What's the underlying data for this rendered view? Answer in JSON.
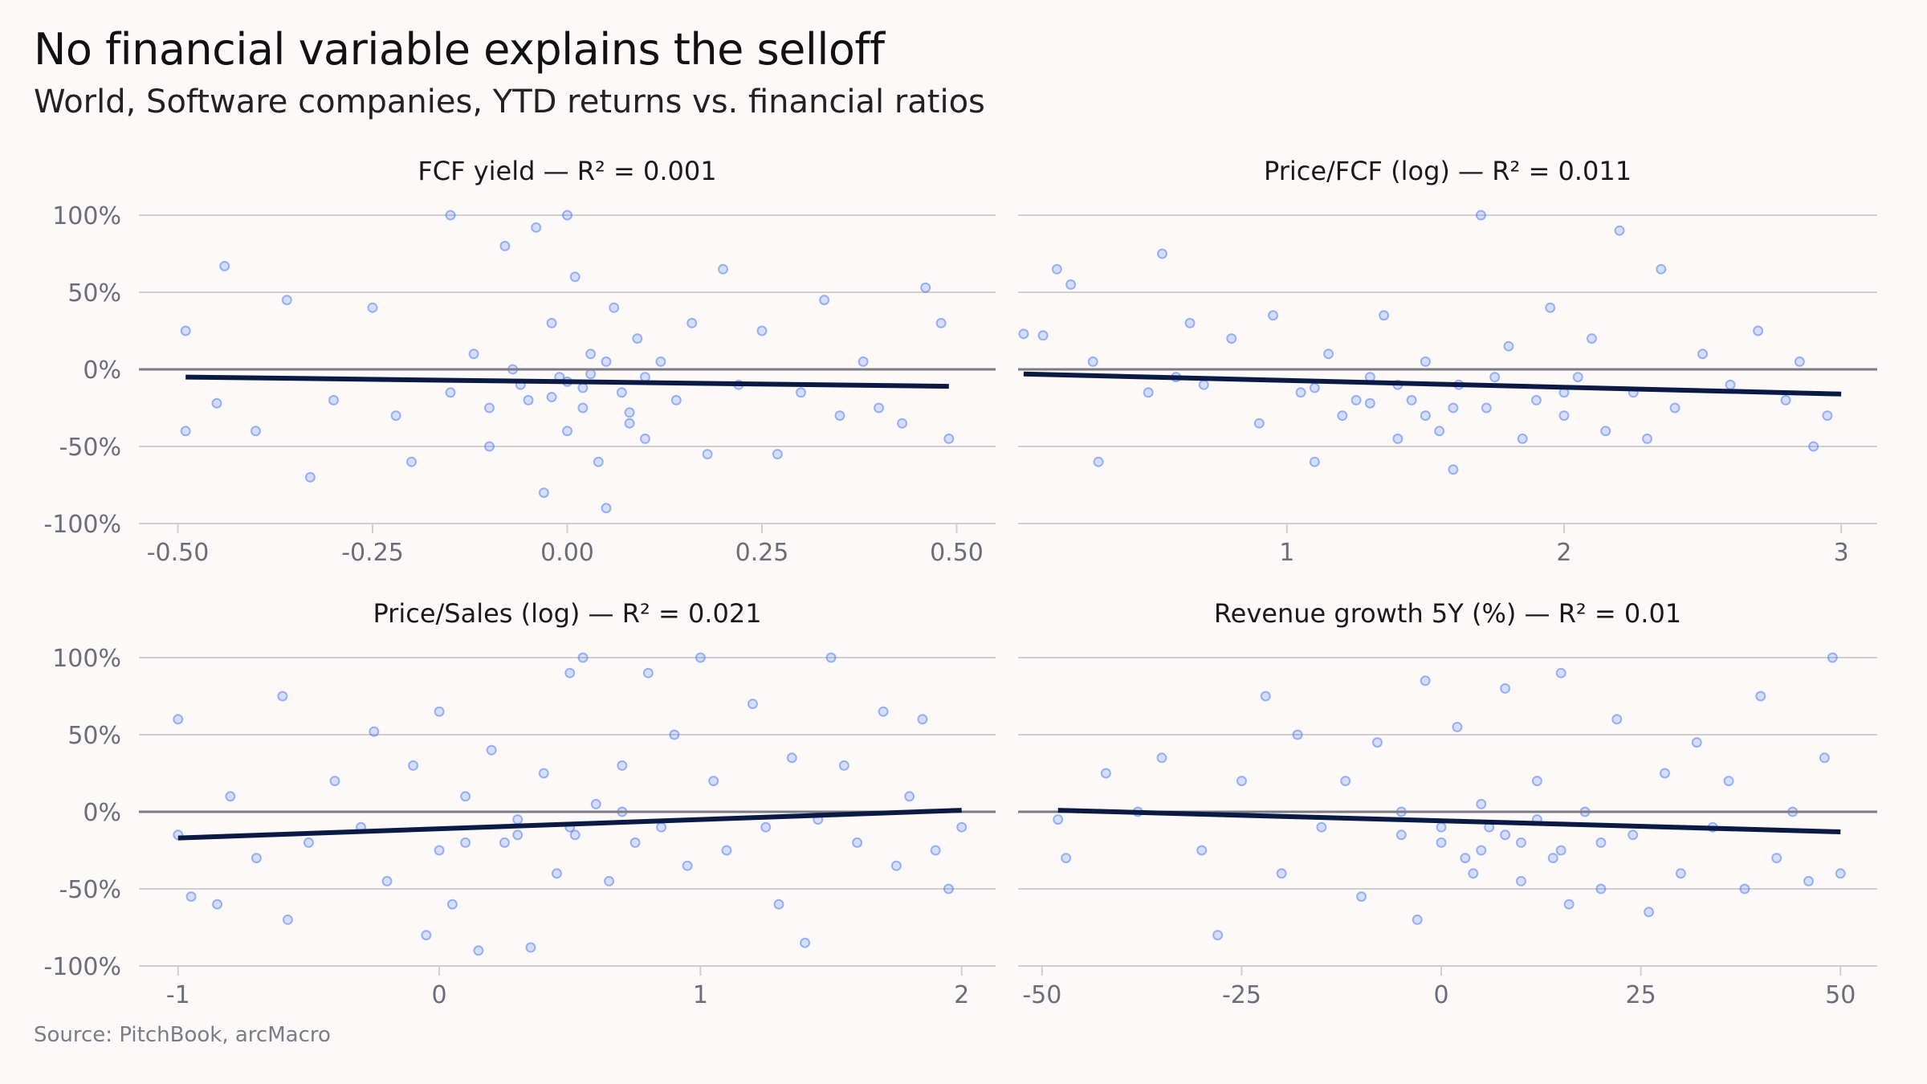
{
  "header": {
    "title": "No financial variable explains the selloff",
    "subtitle": "World, Software companies, YTD returns vs. financial ratios"
  },
  "footer": {
    "source": "Source: PitchBook, arcMacro"
  },
  "colors": {
    "points": "#2f66ff",
    "trend": "#0a1a45",
    "zero_line": "#7b7c84",
    "grid": "#cfcfcf",
    "background": "#fcf9f8"
  },
  "chart_data": [
    {
      "type": "scatter",
      "title": "FCF yield — R² = 0.001",
      "xlim": [
        -0.55,
        0.55
      ],
      "ylim": [
        -100,
        100
      ],
      "xticks": [
        -0.5,
        -0.25,
        0,
        0.25,
        0.5
      ],
      "xtick_labels": [
        "-0.50",
        "-0.25",
        "0.00",
        "0.25",
        "0.50"
      ],
      "yticks": [
        100,
        50,
        0,
        -50,
        -100
      ],
      "ytick_labels": [
        "100%",
        "50%",
        "0%",
        "-50%",
        "-100%"
      ],
      "trend": [
        [
          -0.49,
          -5
        ],
        [
          0.49,
          -11
        ]
      ],
      "points": [
        [
          -0.49,
          25
        ],
        [
          -0.49,
          -40
        ],
        [
          -0.44,
          67
        ],
        [
          -0.45,
          -22
        ],
        [
          -0.4,
          -40
        ],
        [
          -0.36,
          45
        ],
        [
          -0.33,
          -70
        ],
        [
          -0.3,
          -20
        ],
        [
          -0.25,
          40
        ],
        [
          -0.22,
          -30
        ],
        [
          -0.2,
          -60
        ],
        [
          -0.15,
          100
        ],
        [
          -0.15,
          -15
        ],
        [
          -0.12,
          10
        ],
        [
          -0.1,
          -50
        ],
        [
          -0.08,
          80
        ],
        [
          -0.05,
          -20
        ],
        [
          -0.04,
          92
        ],
        [
          -0.03,
          -80
        ],
        [
          -0.02,
          30
        ],
        [
          -0.01,
          -5
        ],
        [
          0,
          100
        ],
        [
          0,
          -40
        ],
        [
          0.01,
          60
        ],
        [
          0.02,
          -25
        ],
        [
          0.03,
          10
        ],
        [
          0.04,
          -60
        ],
        [
          0.05,
          -90
        ],
        [
          0.06,
          40
        ],
        [
          0.07,
          -15
        ],
        [
          0.08,
          -35
        ],
        [
          0.09,
          20
        ],
        [
          0.1,
          -45
        ],
        [
          0.12,
          5
        ],
        [
          0.14,
          -20
        ],
        [
          0.16,
          30
        ],
        [
          0.18,
          -55
        ],
        [
          0.2,
          65
        ],
        [
          0.22,
          -10
        ],
        [
          0.25,
          25
        ],
        [
          0.27,
          -55
        ],
        [
          0.3,
          -15
        ],
        [
          0.33,
          45
        ],
        [
          0.35,
          -30
        ],
        [
          0.38,
          5
        ],
        [
          0.4,
          -25
        ],
        [
          0.43,
          -35
        ],
        [
          0.46,
          53
        ],
        [
          0.48,
          30
        ],
        [
          0.49,
          -45
        ],
        [
          -0.06,
          -10
        ],
        [
          0,
          -8
        ],
        [
          0.02,
          -12
        ],
        [
          -0.02,
          -18
        ],
        [
          0.05,
          5
        ],
        [
          -0.07,
          0
        ],
        [
          0.1,
          -5
        ],
        [
          -0.1,
          -25
        ],
        [
          0.08,
          -28
        ],
        [
          0.03,
          -3
        ]
      ]
    },
    {
      "type": "scatter",
      "title": "Price/FCF (log) — R² = 0.011",
      "xlim": [
        0.03,
        3.13
      ],
      "ylim": [
        -100,
        100
      ],
      "xticks": [
        1,
        2,
        3
      ],
      "xtick_labels": [
        "1",
        "2",
        "3"
      ],
      "yticks": [
        100,
        50,
        0,
        -50,
        -100
      ],
      "ytick_labels": [],
      "trend": [
        [
          0.05,
          -3
        ],
        [
          3,
          -16
        ]
      ],
      "points": [
        [
          0.05,
          23
        ],
        [
          0.12,
          22
        ],
        [
          0.17,
          65
        ],
        [
          0.22,
          55
        ],
        [
          0.3,
          5
        ],
        [
          0.32,
          -60
        ],
        [
          0.5,
          -15
        ],
        [
          0.55,
          75
        ],
        [
          0.65,
          30
        ],
        [
          0.8,
          20
        ],
        [
          0.9,
          -35
        ],
        [
          0.95,
          35
        ],
        [
          1.05,
          -15
        ],
        [
          1.1,
          -60
        ],
        [
          1.15,
          10
        ],
        [
          1.2,
          -30
        ],
        [
          1.3,
          -5
        ],
        [
          1.35,
          35
        ],
        [
          1.4,
          -45
        ],
        [
          1.45,
          -20
        ],
        [
          1.5,
          5
        ],
        [
          1.55,
          -40
        ],
        [
          1.6,
          -65
        ],
        [
          1.62,
          -10
        ],
        [
          1.7,
          100
        ],
        [
          1.72,
          -25
        ],
        [
          1.8,
          15
        ],
        [
          1.85,
          -45
        ],
        [
          1.9,
          -20
        ],
        [
          1.95,
          40
        ],
        [
          2,
          -30
        ],
        [
          2.05,
          -5
        ],
        [
          2.1,
          20
        ],
        [
          2.15,
          -40
        ],
        [
          2.2,
          90
        ],
        [
          2.25,
          -15
        ],
        [
          2.3,
          -45
        ],
        [
          2.35,
          65
        ],
        [
          2.4,
          -25
        ],
        [
          2.5,
          10
        ],
        [
          2.6,
          -10
        ],
        [
          2.7,
          25
        ],
        [
          2.8,
          -20
        ],
        [
          2.85,
          5
        ],
        [
          2.9,
          -50
        ],
        [
          2.95,
          -30
        ],
        [
          1.25,
          -20
        ],
        [
          1.4,
          -10
        ],
        [
          1.6,
          -25
        ],
        [
          1.75,
          -5
        ],
        [
          2,
          -15
        ],
        [
          1.1,
          -12
        ],
        [
          1.5,
          -30
        ],
        [
          1.3,
          -22
        ],
        [
          0.7,
          -10
        ],
        [
          0.6,
          -5
        ]
      ]
    },
    {
      "type": "scatter",
      "title": "Price/Sales (log) — R² = 0.021",
      "xlim": [
        -1.15,
        2.13
      ],
      "ylim": [
        -100,
        100
      ],
      "xticks": [
        -1,
        0,
        1,
        2
      ],
      "xtick_labels": [
        "-1",
        "0",
        "1",
        "2"
      ],
      "yticks": [
        100,
        50,
        0,
        -50,
        -100
      ],
      "ytick_labels": [
        "100%",
        "50%",
        "0%",
        "-50%",
        "-100%"
      ],
      "trend": [
        [
          -1,
          -17
        ],
        [
          2,
          1
        ]
      ],
      "points": [
        [
          -1,
          60
        ],
        [
          -1,
          -15
        ],
        [
          -0.95,
          -55
        ],
        [
          -0.85,
          -60
        ],
        [
          -0.8,
          10
        ],
        [
          -0.7,
          -30
        ],
        [
          -0.6,
          75
        ],
        [
          -0.58,
          -70
        ],
        [
          -0.5,
          -20
        ],
        [
          -0.4,
          20
        ],
        [
          -0.3,
          -10
        ],
        [
          -0.25,
          52
        ],
        [
          -0.2,
          -45
        ],
        [
          -0.1,
          30
        ],
        [
          -0.05,
          -80
        ],
        [
          0,
          65
        ],
        [
          0,
          -25
        ],
        [
          0.05,
          -60
        ],
        [
          0.1,
          10
        ],
        [
          0.15,
          -90
        ],
        [
          0.2,
          40
        ],
        [
          0.25,
          -20
        ],
        [
          0.3,
          -5
        ],
        [
          0.35,
          -88
        ],
        [
          0.4,
          25
        ],
        [
          0.45,
          -40
        ],
        [
          0.5,
          90
        ],
        [
          0.52,
          -15
        ],
        [
          0.55,
          100
        ],
        [
          0.6,
          5
        ],
        [
          0.65,
          -45
        ],
        [
          0.7,
          30
        ],
        [
          0.75,
          -20
        ],
        [
          0.8,
          90
        ],
        [
          0.85,
          -10
        ],
        [
          0.9,
          50
        ],
        [
          0.95,
          -35
        ],
        [
          1,
          100
        ],
        [
          1.05,
          20
        ],
        [
          1.1,
          -25
        ],
        [
          1.2,
          70
        ],
        [
          1.25,
          -10
        ],
        [
          1.3,
          -60
        ],
        [
          1.35,
          35
        ],
        [
          1.4,
          -85
        ],
        [
          1.45,
          -5
        ],
        [
          1.5,
          100
        ],
        [
          1.55,
          30
        ],
        [
          1.6,
          -20
        ],
        [
          1.7,
          65
        ],
        [
          1.75,
          -35
        ],
        [
          1.8,
          10
        ],
        [
          1.85,
          60
        ],
        [
          1.9,
          -25
        ],
        [
          1.95,
          -50
        ],
        [
          2,
          -10
        ],
        [
          0.3,
          -15
        ],
        [
          0.5,
          -10
        ],
        [
          0.7,
          0
        ],
        [
          0.1,
          -20
        ]
      ]
    },
    {
      "type": "scatter",
      "title": "Revenue growth 5Y (%) — R² = 0.01",
      "xlim": [
        -53,
        54.6
      ],
      "ylim": [
        -100,
        100
      ],
      "xticks": [
        -50,
        -25,
        0,
        25,
        50
      ],
      "xtick_labels": [
        "-50",
        "-25",
        "0",
        "25",
        "50"
      ],
      "yticks": [
        100,
        50,
        0,
        -50,
        -100
      ],
      "ytick_labels": [],
      "trend": [
        [
          -48,
          1
        ],
        [
          50,
          -13
        ]
      ],
      "points": [
        [
          -48,
          -5
        ],
        [
          -47,
          -30
        ],
        [
          -42,
          25
        ],
        [
          -38,
          0
        ],
        [
          -35,
          35
        ],
        [
          -30,
          -25
        ],
        [
          -28,
          -80
        ],
        [
          -25,
          20
        ],
        [
          -22,
          75
        ],
        [
          -20,
          -40
        ],
        [
          -18,
          50
        ],
        [
          -15,
          -10
        ],
        [
          -12,
          20
        ],
        [
          -10,
          -55
        ],
        [
          -8,
          45
        ],
        [
          -5,
          -15
        ],
        [
          -3,
          -70
        ],
        [
          -2,
          85
        ],
        [
          0,
          -20
        ],
        [
          2,
          55
        ],
        [
          4,
          -40
        ],
        [
          5,
          5
        ],
        [
          6,
          -10
        ],
        [
          8,
          80
        ],
        [
          10,
          -45
        ],
        [
          12,
          20
        ],
        [
          14,
          -30
        ],
        [
          15,
          90
        ],
        [
          16,
          -60
        ],
        [
          18,
          0
        ],
        [
          20,
          -50
        ],
        [
          22,
          60
        ],
        [
          24,
          -15
        ],
        [
          26,
          -65
        ],
        [
          28,
          25
        ],
        [
          30,
          -40
        ],
        [
          32,
          45
        ],
        [
          34,
          -10
        ],
        [
          36,
          20
        ],
        [
          38,
          -50
        ],
        [
          40,
          75
        ],
        [
          42,
          -30
        ],
        [
          44,
          0
        ],
        [
          46,
          -45
        ],
        [
          48,
          35
        ],
        [
          49,
          100
        ],
        [
          50,
          -40
        ],
        [
          5,
          -25
        ],
        [
          8,
          -15
        ],
        [
          10,
          -20
        ],
        [
          0,
          -10
        ],
        [
          3,
          -30
        ],
        [
          12,
          -5
        ],
        [
          -5,
          0
        ],
        [
          15,
          -25
        ],
        [
          20,
          -20
        ]
      ]
    }
  ]
}
